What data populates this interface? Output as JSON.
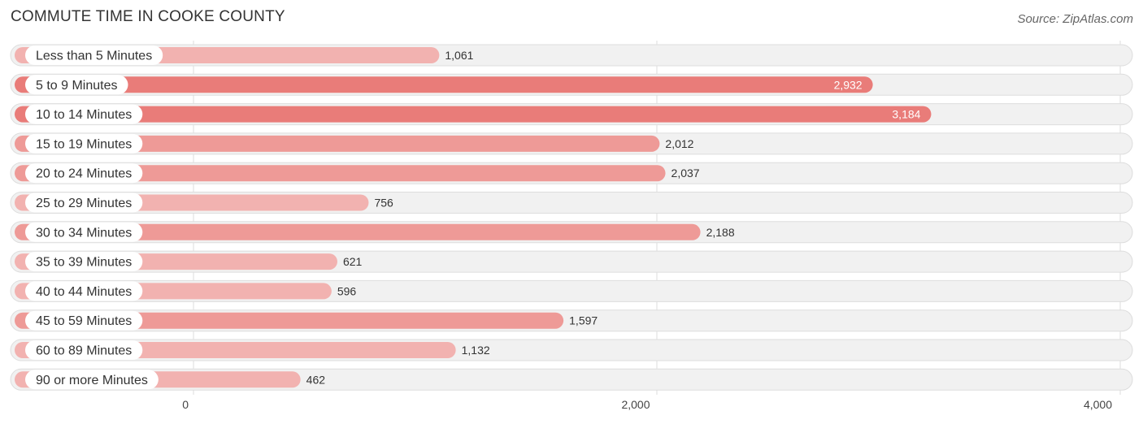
{
  "header": {
    "title": "COMMUTE TIME IN COOKE COUNTY",
    "source": "Source: ZipAtlas.com"
  },
  "colors": {
    "bar_strong": "#e97c79",
    "bar_medium": "#ee9a97",
    "bar_light": "#f2b2b0",
    "row_bg": "#f1f1f1",
    "row_border": "#dddddd",
    "grid": "#dddddd",
    "value_dark": "#333333",
    "value_light": "#ffffff"
  },
  "chart_data": {
    "type": "bar",
    "orientation": "horizontal",
    "title": "COMMUTE TIME IN COOKE COUNTY",
    "categories": [
      "Less than 5 Minutes",
      "5 to 9 Minutes",
      "10 to 14 Minutes",
      "15 to 19 Minutes",
      "20 to 24 Minutes",
      "25 to 29 Minutes",
      "30 to 34 Minutes",
      "35 to 39 Minutes",
      "40 to 44 Minutes",
      "45 to 59 Minutes",
      "60 to 89 Minutes",
      "90 or more Minutes"
    ],
    "values": [
      1061,
      2932,
      3184,
      2012,
      2037,
      756,
      2188,
      621,
      596,
      1597,
      1132,
      462
    ],
    "value_labels": [
      "1,061",
      "2,932",
      "3,184",
      "2,012",
      "2,037",
      "756",
      "2,188",
      "621",
      "596",
      "1,597",
      "1,132",
      "462"
    ],
    "xlim": [
      0,
      4000
    ],
    "ticks": [
      0,
      2000,
      4000
    ],
    "tick_labels": [
      "0",
      "2,000",
      "4,000"
    ],
    "grid": true,
    "xlabel": "",
    "ylabel": ""
  }
}
